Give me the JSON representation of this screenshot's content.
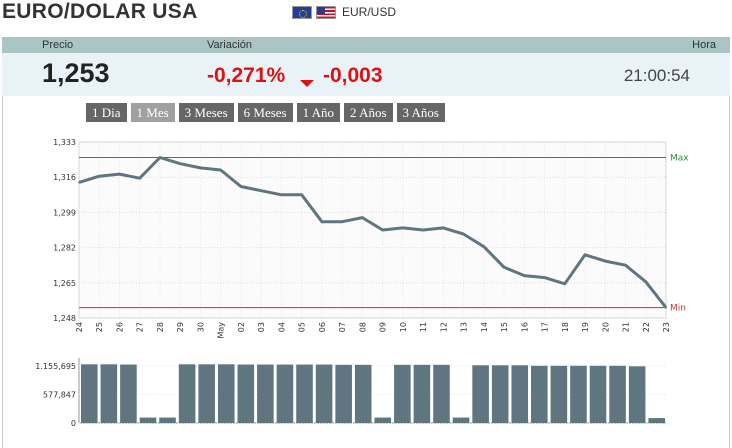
{
  "title": "EURO/DOLAR USA",
  "pair": {
    "label": "EUR/USD",
    "flags": [
      "eu-flag-icon",
      "us-flag-icon"
    ]
  },
  "header": {
    "price_label": "Precio",
    "change_label": "Variación",
    "time_label": "Hora"
  },
  "quote": {
    "price": "1,253",
    "change_pct": "-0,271%",
    "change_abs": "-0,003",
    "time": "21:00:54",
    "direction_icon": "down-arrow-icon"
  },
  "ranges": [
    {
      "label": "1 Dia",
      "active": false
    },
    {
      "label": "1 Mes",
      "active": true
    },
    {
      "label": "3 Meses",
      "active": false
    },
    {
      "label": "6 Meses",
      "active": false
    },
    {
      "label": "1 Año",
      "active": false
    },
    {
      "label": "2 Años",
      "active": false
    },
    {
      "label": "3 Años",
      "active": false
    }
  ],
  "colors": {
    "line": "#5f7580",
    "max": "#2e8b3c",
    "min": "#c0392b",
    "bars": "#5f7580",
    "header": "#a9c6c4",
    "down": "#e01010"
  },
  "chart_data": [
    {
      "type": "line",
      "categories": [
        "24",
        "25",
        "26",
        "27",
        "28",
        "29",
        "30",
        "May",
        "02",
        "03",
        "04",
        "05",
        "06",
        "07",
        "08",
        "09",
        "10",
        "11",
        "12",
        "13",
        "14",
        "15",
        "16",
        "17",
        "18",
        "19",
        "20",
        "21",
        "22",
        "23"
      ],
      "values": [
        1.3135,
        1.3165,
        1.3175,
        1.3155,
        1.3255,
        1.3225,
        1.3205,
        1.3195,
        1.3115,
        1.3095,
        1.3075,
        1.3075,
        1.2945,
        1.2945,
        1.2965,
        1.2905,
        1.2915,
        1.2905,
        1.2915,
        1.2885,
        1.2825,
        1.2725,
        1.2685,
        1.2675,
        1.2645,
        1.2785,
        1.2755,
        1.2735,
        1.2655,
        1.253
      ],
      "ylim": [
        1.248,
        1.333
      ],
      "yticks": [
        1.248,
        1.265,
        1.282,
        1.299,
        1.316,
        1.333
      ],
      "ytick_labels": [
        "1,248",
        "1,265",
        "1,282",
        "1,299",
        "1,316",
        "1,333"
      ],
      "reference_lines": [
        {
          "name": "Max",
          "value": 1.3255
        },
        {
          "name": "Min",
          "value": 1.253
        }
      ],
      "grid": true
    },
    {
      "type": "bar",
      "categories": [
        "24",
        "25",
        "26",
        "27",
        "28",
        "29",
        "30",
        "May",
        "02",
        "03",
        "04",
        "05",
        "06",
        "07",
        "08",
        "09",
        "10",
        "11",
        "12",
        "13",
        "14",
        "15",
        "16",
        "17",
        "18",
        "19",
        "20",
        "21",
        "22",
        "23"
      ],
      "values": [
        1190000,
        1190000,
        1185000,
        110000,
        110000,
        1190000,
        1190000,
        1190000,
        1185000,
        1185000,
        1185000,
        1185000,
        1185000,
        1180000,
        1180000,
        110000,
        1180000,
        1180000,
        1180000,
        110000,
        1170000,
        1170000,
        1170000,
        1160000,
        1160000,
        1160000,
        1160000,
        1160000,
        1150000,
        100000
      ],
      "ylim": [
        0,
        1155695
      ],
      "yticks": [
        0,
        577847,
        1155695
      ],
      "ytick_labels": [
        "0",
        "577,847",
        "1.155,695"
      ]
    }
  ]
}
